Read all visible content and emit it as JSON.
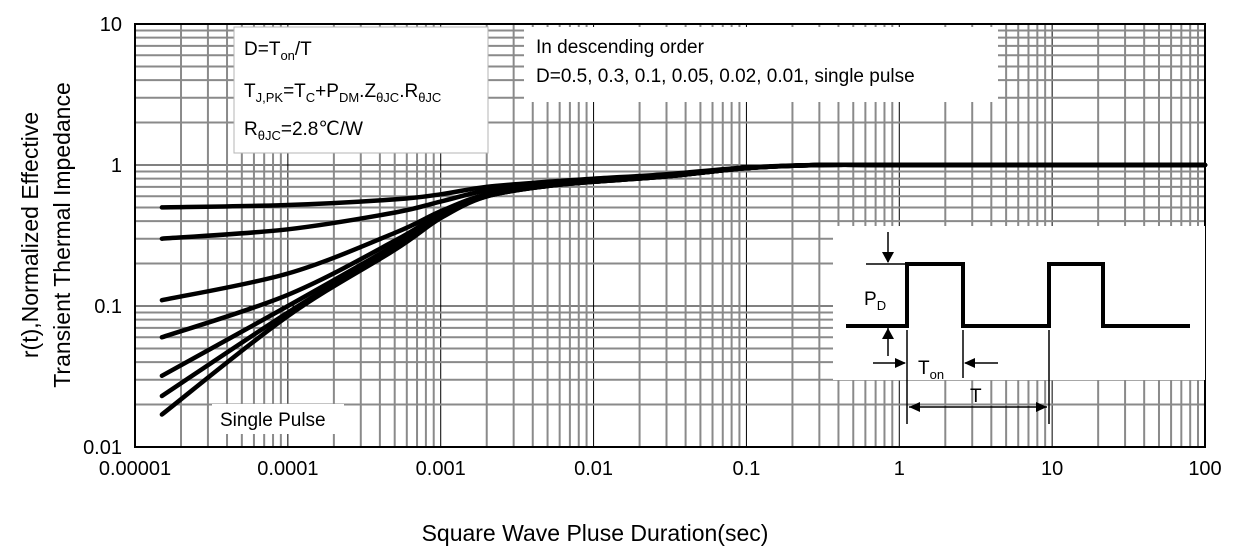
{
  "chart_data": {
    "type": "line",
    "x_scale": "log",
    "y_scale": "log",
    "xlim": [
      1e-05,
      100
    ],
    "ylim": [
      0.01,
      10
    ],
    "xticks": [
      "0.00001",
      "0.0001",
      "0.001",
      "0.01",
      "0.1",
      "1",
      "10",
      "100"
    ],
    "yticks": [
      "0.01",
      "0.1",
      "1",
      "10"
    ],
    "xlabel": "Square Wave Pluse Duration(sec)",
    "ylabel_line1": "r(t),Normalized Effective",
    "ylabel_line2": "Transient Thermal Impedance",
    "grid": "on",
    "series": [
      {
        "x": [
          1.5e-05,
          0.0001,
          0.0005,
          0.001,
          0.002,
          0.005,
          0.01,
          0.03,
          0.1,
          0.3,
          1,
          10,
          100
        ],
        "y": [
          0.5,
          0.52,
          0.57,
          0.62,
          0.7,
          0.76,
          0.8,
          0.86,
          0.96,
          1.0,
          1.0,
          1.0,
          1.0
        ]
      },
      {
        "x": [
          1.5e-05,
          0.0001,
          0.0005,
          0.001,
          0.002,
          0.005,
          0.01,
          0.03,
          0.1,
          0.3,
          1,
          10,
          100
        ],
        "y": [
          0.3,
          0.35,
          0.46,
          0.55,
          0.66,
          0.74,
          0.78,
          0.84,
          0.95,
          1.0,
          1.0,
          1.0,
          1.0
        ]
      },
      {
        "x": [
          1.5e-05,
          0.0001,
          0.0005,
          0.001,
          0.002,
          0.005,
          0.01,
          0.03,
          0.1,
          0.3,
          1,
          10,
          100
        ],
        "y": [
          0.11,
          0.17,
          0.33,
          0.47,
          0.62,
          0.72,
          0.77,
          0.83,
          0.95,
          1.0,
          1.0,
          1.0,
          1.0
        ]
      },
      {
        "x": [
          1.5e-05,
          0.0001,
          0.0005,
          0.001,
          0.002,
          0.005,
          0.01,
          0.03,
          0.1,
          0.3,
          1,
          10,
          100
        ],
        "y": [
          0.06,
          0.12,
          0.29,
          0.45,
          0.61,
          0.72,
          0.77,
          0.83,
          0.95,
          1.0,
          1.0,
          1.0,
          1.0
        ]
      },
      {
        "x": [
          1.5e-05,
          0.0001,
          0.0005,
          0.001,
          0.002,
          0.005,
          0.01,
          0.03,
          0.1,
          0.3,
          1,
          10,
          100
        ],
        "y": [
          0.032,
          0.1,
          0.27,
          0.44,
          0.6,
          0.71,
          0.76,
          0.83,
          0.95,
          1.0,
          1.0,
          1.0,
          1.0
        ]
      },
      {
        "x": [
          1.5e-05,
          0.0001,
          0.0005,
          0.001,
          0.002,
          0.005,
          0.01,
          0.03,
          0.1,
          0.3,
          1,
          10,
          100
        ],
        "y": [
          0.023,
          0.09,
          0.26,
          0.43,
          0.6,
          0.71,
          0.76,
          0.83,
          0.95,
          1.0,
          1.0,
          1.0,
          1.0
        ]
      },
      {
        "x": [
          1.5e-05,
          0.0001,
          0.0005,
          0.001,
          0.002,
          0.005,
          0.01,
          0.03,
          0.1,
          0.3,
          1,
          10,
          100
        ],
        "y": [
          0.017,
          0.085,
          0.25,
          0.42,
          0.6,
          0.71,
          0.76,
          0.83,
          0.95,
          1.0,
          1.0,
          1.0,
          1.0
        ]
      }
    ],
    "annotations": {
      "formula_box": {
        "line1": {
          "base": "D=T",
          "sub": "on",
          "tail": "/T"
        },
        "line2": {
          "p1": "T",
          "s1": "J,PK",
          "p2": "=T",
          "s2": "C",
          "p3": "+P",
          "s3": "DM",
          "p4": ".Z",
          "s4": "θJC",
          "p5": ".R",
          "s5": "θJC"
        },
        "line3": {
          "base": "R",
          "sub": "θJC",
          "tail": "=2.8℃/W"
        }
      },
      "order_box": {
        "line1": "In descending order",
        "line2": "D=0.5, 0.3, 0.1, 0.05, 0.02, 0.01, single pulse"
      },
      "single_pulse_label": "Single Pulse",
      "inset": {
        "pd": {
          "base": "P",
          "sub": "D"
        },
        "ton": {
          "base": "T",
          "sub": "on"
        },
        "t": "T"
      }
    }
  }
}
